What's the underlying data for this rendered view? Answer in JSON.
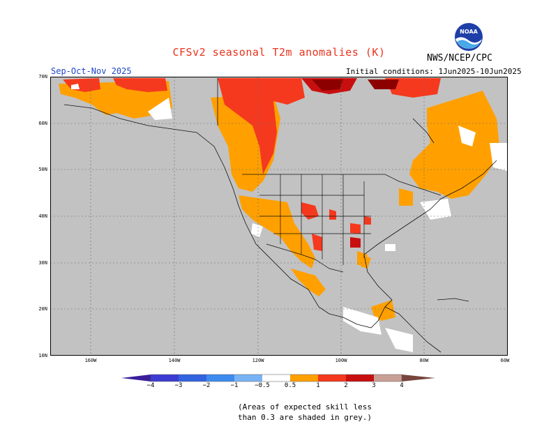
{
  "title": "CFSv2 seasonal T2m anomalies (K)",
  "season": "Sep-Oct-Nov 2025",
  "initial_conditions": "Initial conditions: 1Jun2025-10Jun2025",
  "agency": "NWS/NCEP/CPC",
  "logo": {
    "text": "NOAA",
    "icon": "noaa-logo"
  },
  "map": {
    "lat_labels": [
      "70N",
      "60N",
      "50N",
      "40N",
      "30N",
      "20N",
      "10N"
    ],
    "lon_labels": [
      "160W",
      "140W",
      "120W",
      "100W",
      "80W",
      "60W"
    ],
    "colors": {
      "no_skill": "#c2c2c2",
      "land_white": "#ffffff",
      "anom_0_5_1": "#ffa000",
      "anom_1_2": "#f5391e",
      "anom_2_3": "#c80f0f",
      "anom_3_4": "#8c0000"
    }
  },
  "colorbar": {
    "labels": [
      "−4",
      "−3",
      "−2",
      "−1",
      "−0.5",
      "0.5",
      "1",
      "2",
      "3",
      "4"
    ],
    "colors": [
      "#3a1e9b",
      "#3c3cd2",
      "#3264e1",
      "#3c8cf0",
      "#78b4f5",
      "#ffffff",
      "#ffa000",
      "#f5391e",
      "#c80f0f",
      "#8c0000",
      "#c8a096",
      "#78463c"
    ]
  },
  "note_line1": "(Areas of expected skill less",
  "note_line2": "than 0.3 are shaded in grey.)"
}
